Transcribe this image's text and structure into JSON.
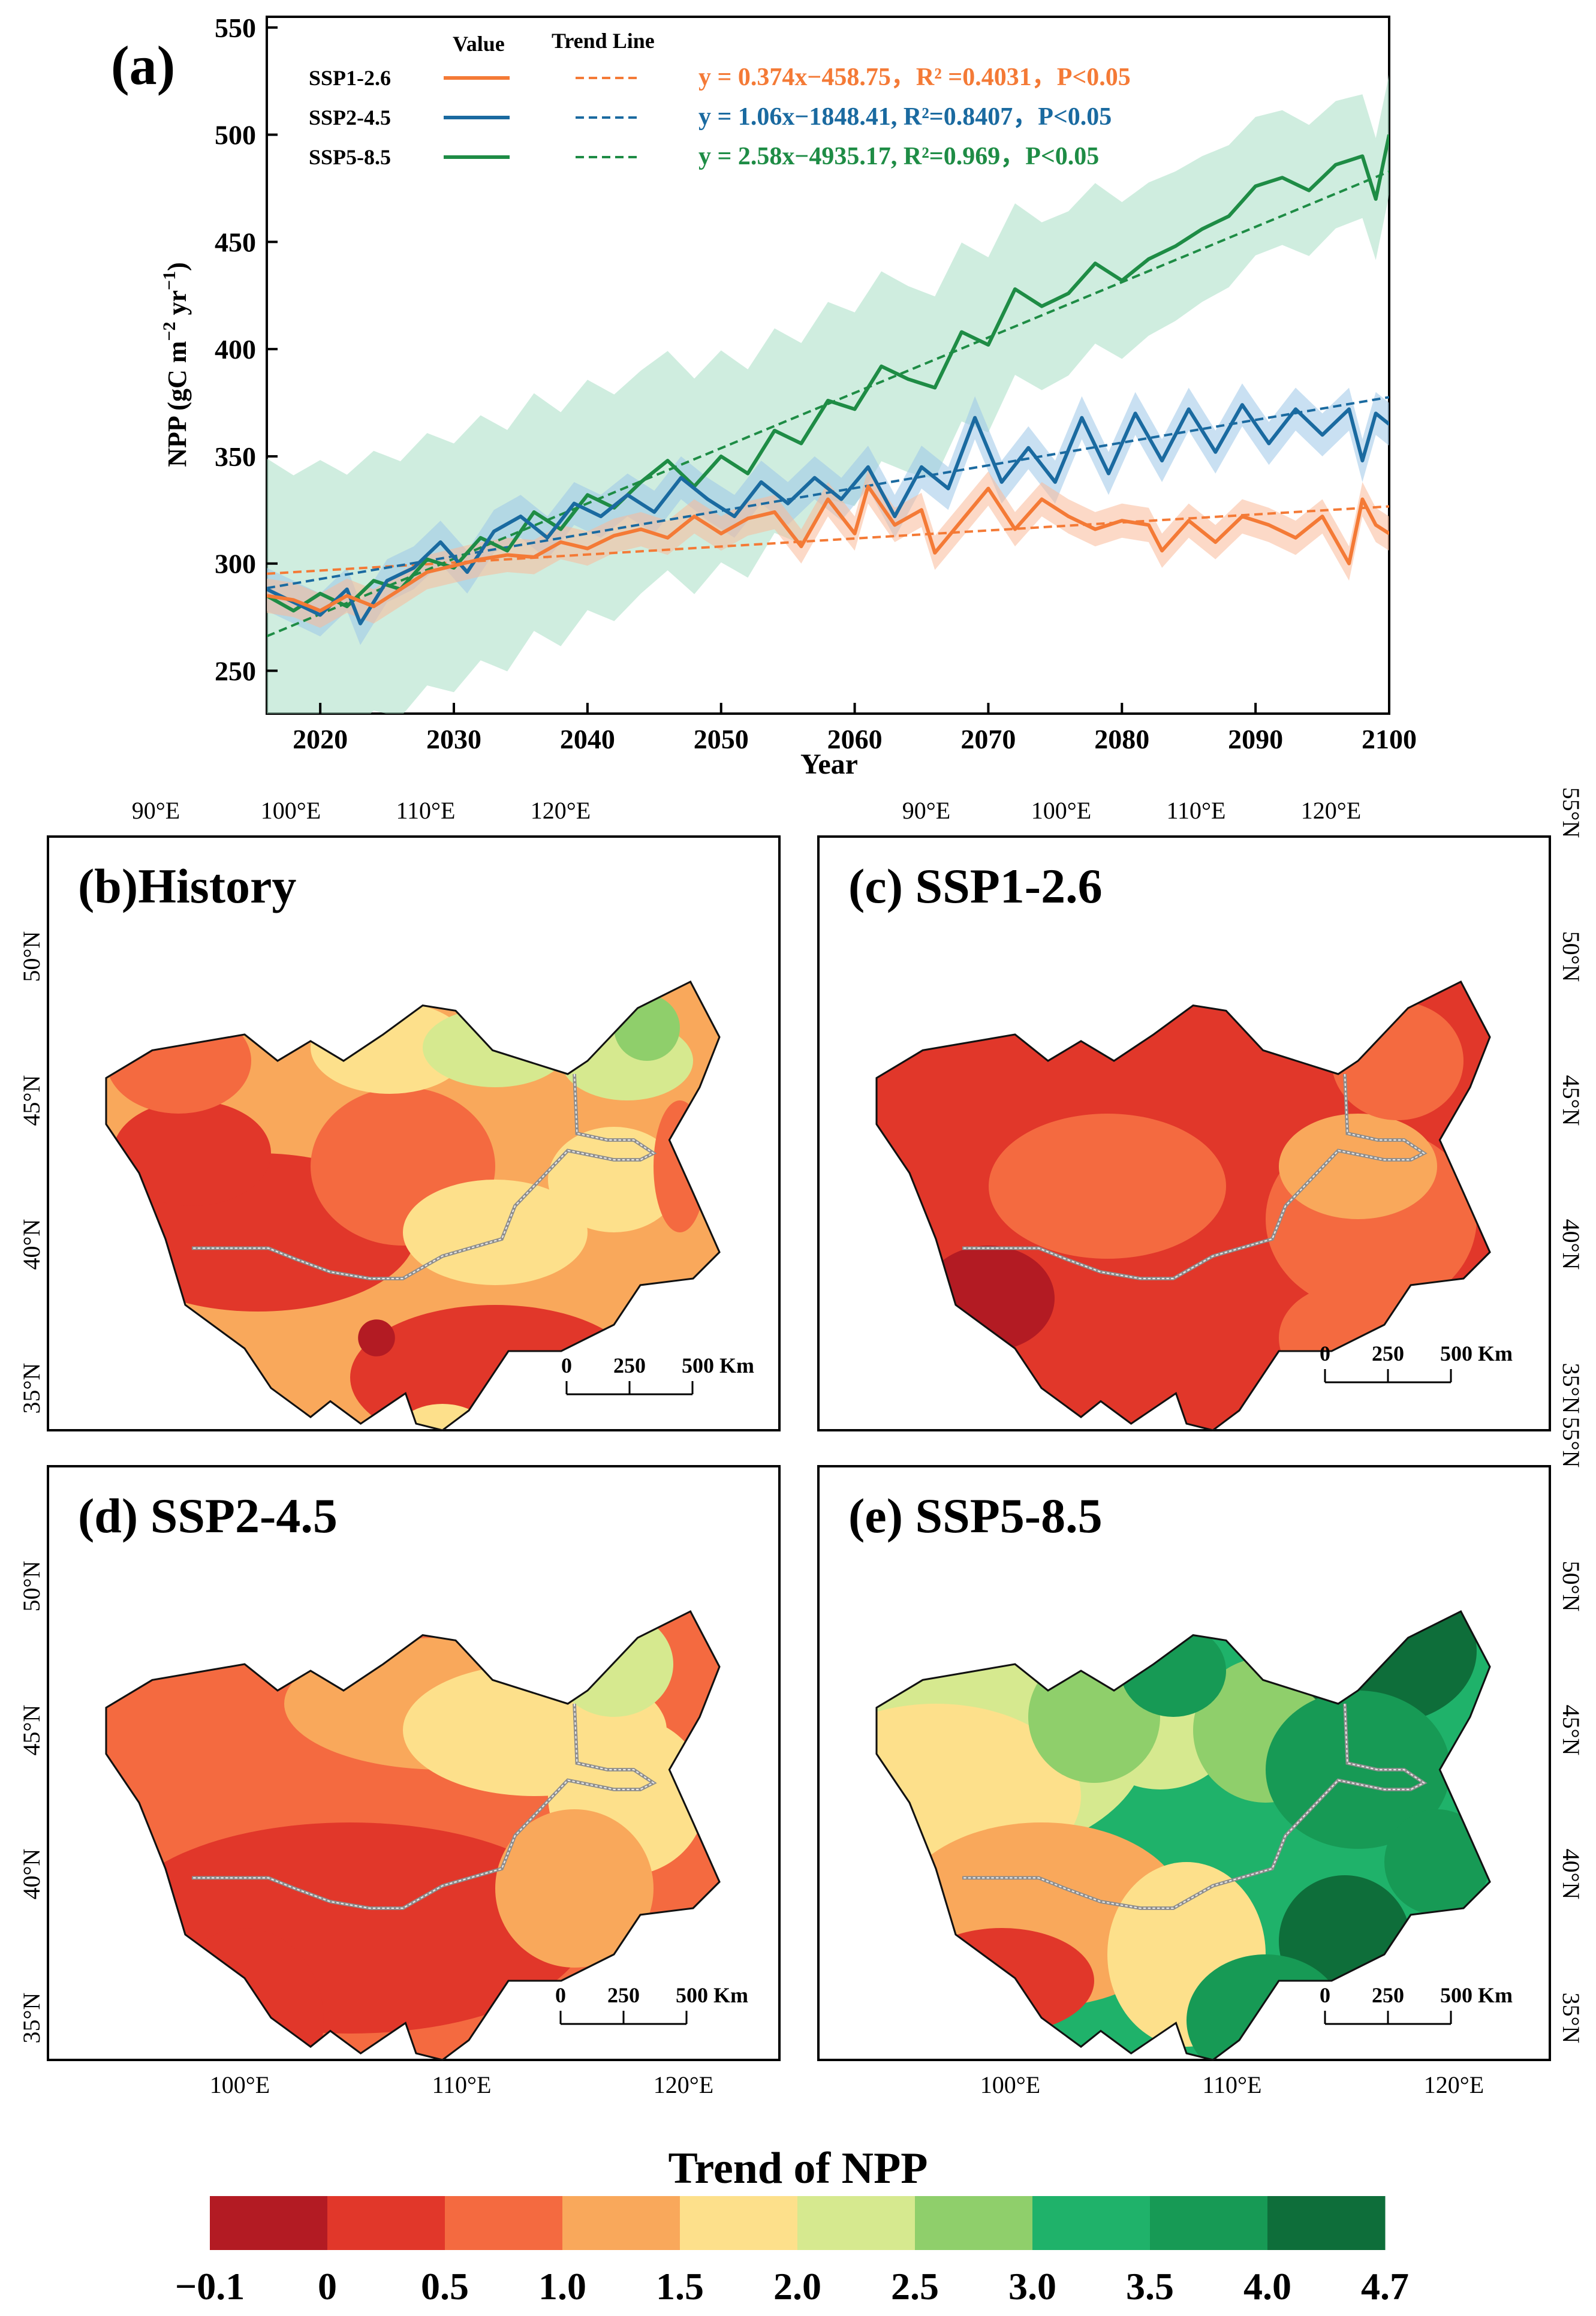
{
  "chart_data": [
    {
      "panel": "a",
      "type": "line",
      "panel_label": "(a)",
      "xlabel": "Year",
      "ylabel_main": "NPP (gC m",
      "ylabel_exp1": "−2",
      "ylabel_mid": " yr",
      "ylabel_exp2": "−1",
      "ylabel_end": ")",
      "xlim": [
        2016,
        2100
      ],
      "ylim": [
        230,
        555
      ],
      "xticks": [
        "2020",
        "2030",
        "2040",
        "2050",
        "2060",
        "2070",
        "2080",
        "2090",
        "2100"
      ],
      "yticks": [
        "250",
        "300",
        "350",
        "400",
        "450",
        "500",
        "550"
      ],
      "legend_header_value": "Value",
      "legend_header_trend": "Trend Line",
      "series": [
        {
          "name": "SSP1-2.6",
          "color": "#f47a36",
          "band_color": "#f9b999",
          "equation": "y = 0.374x−458.75，R² =0.4031，P<0.05",
          "trend": {
            "slope": 0.374,
            "intercept": -458.75
          },
          "band": 8,
          "keyframes": [
            [
              2016,
              285
            ],
            [
              2018,
              283
            ],
            [
              2020,
              278
            ],
            [
              2022,
              285
            ],
            [
              2024,
              280
            ],
            [
              2026,
              288
            ],
            [
              2028,
              296
            ],
            [
              2030,
              299
            ],
            [
              2032,
              302
            ],
            [
              2034,
              304
            ],
            [
              2036,
              303
            ],
            [
              2038,
              310
            ],
            [
              2040,
              307
            ],
            [
              2042,
              313
            ],
            [
              2044,
              316
            ],
            [
              2046,
              312
            ],
            [
              2048,
              322
            ],
            [
              2050,
              314
            ],
            [
              2052,
              321
            ],
            [
              2054,
              324
            ],
            [
              2056,
              308
            ],
            [
              2058,
              330
            ],
            [
              2060,
              314
            ],
            [
              2061,
              336
            ],
            [
              2063,
              318
            ],
            [
              2065,
              325
            ],
            [
              2066,
              305
            ],
            [
              2068,
              320
            ],
            [
              2070,
              335
            ],
            [
              2072,
              316
            ],
            [
              2074,
              330
            ],
            [
              2076,
              322
            ],
            [
              2078,
              316
            ],
            [
              2080,
              320
            ],
            [
              2082,
              318
            ],
            [
              2083,
              306
            ],
            [
              2085,
              320
            ],
            [
              2087,
              310
            ],
            [
              2089,
              322
            ],
            [
              2091,
              318
            ],
            [
              2093,
              312
            ],
            [
              2095,
              322
            ],
            [
              2097,
              300
            ],
            [
              2098,
              330
            ],
            [
              2099,
              318
            ],
            [
              2100,
              314
            ]
          ]
        },
        {
          "name": "SSP2-4.5",
          "color": "#1a6aa0",
          "band_color": "#9cc6e8",
          "equation": "y = 1.06x−1848.41, R²=0.8407，P<0.05",
          "trend": {
            "slope": 1.06,
            "intercept": -1848.41
          },
          "band": 10,
          "keyframes": [
            [
              2016,
              288
            ],
            [
              2018,
              282
            ],
            [
              2020,
              276
            ],
            [
              2022,
              288
            ],
            [
              2023,
              272
            ],
            [
              2025,
              292
            ],
            [
              2027,
              298
            ],
            [
              2029,
              310
            ],
            [
              2031,
              296
            ],
            [
              2033,
              315
            ],
            [
              2035,
              322
            ],
            [
              2037,
              312
            ],
            [
              2039,
              328
            ],
            [
              2041,
              322
            ],
            [
              2043,
              332
            ],
            [
              2045,
              324
            ],
            [
              2047,
              340
            ],
            [
              2049,
              330
            ],
            [
              2051,
              322
            ],
            [
              2053,
              338
            ],
            [
              2055,
              328
            ],
            [
              2057,
              340
            ],
            [
              2059,
              330
            ],
            [
              2061,
              345
            ],
            [
              2063,
              322
            ],
            [
              2065,
              345
            ],
            [
              2067,
              335
            ],
            [
              2069,
              368
            ],
            [
              2071,
              338
            ],
            [
              2073,
              354
            ],
            [
              2075,
              338
            ],
            [
              2077,
              368
            ],
            [
              2079,
              342
            ],
            [
              2081,
              370
            ],
            [
              2083,
              348
            ],
            [
              2085,
              372
            ],
            [
              2087,
              352
            ],
            [
              2089,
              374
            ],
            [
              2091,
              356
            ],
            [
              2093,
              372
            ],
            [
              2095,
              360
            ],
            [
              2097,
              372
            ],
            [
              2098,
              348
            ],
            [
              2099,
              370
            ],
            [
              2100,
              365
            ]
          ]
        },
        {
          "name": "SSP5-8.5",
          "color": "#1e8c45",
          "band_color": "#a8dfc4",
          "equation": "y = 2.58x−4935.17, R²=0.969，P<0.05",
          "trend": {
            "slope": 2.58,
            "intercept": -4935.17
          },
          "band": 40,
          "keyframes": [
            [
              2016,
              285
            ],
            [
              2018,
              278
            ],
            [
              2020,
              286
            ],
            [
              2022,
              280
            ],
            [
              2024,
              292
            ],
            [
              2026,
              288
            ],
            [
              2028,
              302
            ],
            [
              2030,
              298
            ],
            [
              2032,
              312
            ],
            [
              2034,
              306
            ],
            [
              2036,
              324
            ],
            [
              2038,
              316
            ],
            [
              2040,
              332
            ],
            [
              2042,
              326
            ],
            [
              2044,
              338
            ],
            [
              2046,
              348
            ],
            [
              2048,
              336
            ],
            [
              2050,
              350
            ],
            [
              2052,
              342
            ],
            [
              2054,
              362
            ],
            [
              2056,
              356
            ],
            [
              2058,
              376
            ],
            [
              2060,
              372
            ],
            [
              2062,
              392
            ],
            [
              2064,
              386
            ],
            [
              2066,
              382
            ],
            [
              2068,
              408
            ],
            [
              2070,
              402
            ],
            [
              2072,
              428
            ],
            [
              2074,
              420
            ],
            [
              2076,
              426
            ],
            [
              2078,
              440
            ],
            [
              2080,
              432
            ],
            [
              2082,
              442
            ],
            [
              2084,
              448
            ],
            [
              2086,
              456
            ],
            [
              2088,
              462
            ],
            [
              2090,
              476
            ],
            [
              2092,
              480
            ],
            [
              2094,
              474
            ],
            [
              2096,
              486
            ],
            [
              2098,
              490
            ],
            [
              2099,
              470
            ],
            [
              2100,
              500
            ]
          ]
        }
      ]
    },
    {
      "panel": "b-e",
      "type": "heatmap",
      "title": "Trend of NPP",
      "colorbar_ticks": [
        "−0.1",
        "0",
        "0.5",
        "1.0",
        "1.5",
        "2.0",
        "2.5",
        "3.0",
        "3.5",
        "4.0",
        "4.7"
      ],
      "colorbar_colors": [
        "#b31b23",
        "#e1372a",
        "#f46a40",
        "#f9a85b",
        "#fde08b",
        "#d6e98f",
        "#8fcf6b",
        "#1fb26a",
        "#179a55",
        "#0e6e3a"
      ],
      "top_lon_ticks": [
        "90°E",
        "100°E",
        "110°E",
        "120°E"
      ],
      "bottom_lon_ticks": [
        "100°E",
        "110°E",
        "120°E"
      ],
      "lat_ticks": [
        "35°N",
        "40°N",
        "45°N",
        "50°N"
      ],
      "lat_ticks_right": [
        "35°N",
        "40°N",
        "45°N",
        "50°N",
        "55°N"
      ],
      "scalebar": [
        "0",
        "250",
        "500 Km"
      ],
      "maps": [
        {
          "id": "b",
          "label": "(b)History",
          "base": "#f9a85b",
          "patches": [
            [
              "#e1372a",
              330,
              360,
              110,
              55
            ],
            [
              "#e1372a",
              150,
              250,
              120,
              60
            ],
            [
              "#e1372a",
              100,
              190,
              60,
              40
            ],
            [
              "#f46a40",
              260,
              200,
              70,
              60
            ],
            [
              "#f46a40",
              90,
              120,
              55,
              40
            ],
            [
              "#fde08b",
              250,
              110,
              60,
              35
            ],
            [
              "#fde08b",
              330,
              250,
              70,
              40
            ],
            [
              "#d6e98f",
              330,
              110,
              55,
              30
            ],
            [
              "#d6e98f",
              430,
              120,
              50,
              30
            ],
            [
              "#8fcf6b",
              445,
              95,
              25,
              25
            ],
            [
              "#fde08b",
              420,
              210,
              50,
              40
            ],
            [
              "#f46a40",
              470,
              200,
              20,
              50
            ],
            [
              "#b31b23",
              240,
              330,
              14,
              14
            ],
            [
              "#fde08b",
              290,
              410,
              40,
              30
            ]
          ]
        },
        {
          "id": "c",
          "label": "(c) SSP1-2.6",
          "base": "#e1372a",
          "patches": [
            [
              "#f46a40",
              210,
              215,
              90,
              55
            ],
            [
              "#f46a40",
              410,
              240,
              80,
              70
            ],
            [
              "#f9a85b",
              400,
              200,
              60,
              40
            ],
            [
              "#f46a40",
              430,
              120,
              50,
              45
            ],
            [
              "#b31b23",
              120,
              300,
              50,
              40
            ],
            [
              "#f46a40",
              390,
              330,
              50,
              40
            ]
          ]
        },
        {
          "id": "d",
          "label": "(d) SSP2-4.5",
          "base": "#f46a40",
          "patches": [
            [
              "#e1372a",
              220,
              300,
              180,
              80
            ],
            [
              "#e1372a",
              140,
              370,
              60,
              70
            ],
            [
              "#f9a85b",
              290,
              130,
              120,
              50
            ],
            [
              "#fde08b",
              360,
              150,
              100,
              50
            ],
            [
              "#d6e98f",
              420,
              100,
              45,
              40
            ],
            [
              "#fde08b",
              430,
              200,
              60,
              60
            ],
            [
              "#f9a85b",
              390,
              270,
              60,
              60
            ]
          ]
        },
        {
          "id": "e",
          "label": "(e) SSP5-8.5",
          "base": "#1fb26a",
          "patches": [
            [
              "#d6e98f",
              90,
              160,
              150,
              90
            ],
            [
              "#fde08b",
              80,
              200,
              110,
              70
            ],
            [
              "#f9a85b",
              160,
              290,
              110,
              70
            ],
            [
              "#e1372a",
              130,
              340,
              70,
              40
            ],
            [
              "#fde08b",
              270,
              320,
              60,
              70
            ],
            [
              "#d6e98f",
              250,
              140,
              60,
              55
            ],
            [
              "#8fcf6b",
              200,
              140,
              50,
              50
            ],
            [
              "#8fcf6b",
              330,
              150,
              55,
              55
            ],
            [
              "#179a55",
              260,
              105,
              40,
              35
            ],
            [
              "#0e6e3a",
              420,
              90,
              70,
              55
            ],
            [
              "#179a55",
              400,
              180,
              70,
              60
            ],
            [
              "#0e6e3a",
              390,
              310,
              50,
              50
            ],
            [
              "#179a55",
              330,
              370,
              60,
              50
            ],
            [
              "#179a55",
              460,
              250,
              40,
              40
            ]
          ]
        }
      ]
    }
  ]
}
